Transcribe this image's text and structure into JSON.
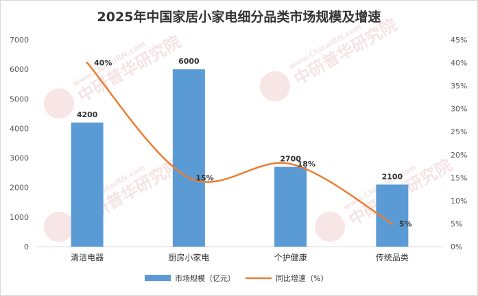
{
  "chart_data": {
    "type": "bar",
    "title": "2025年中国家居小家电细分品类市场规模及增速",
    "categories": [
      "清洁电器",
      "厨房小家电",
      "个护健康",
      "传统品类"
    ],
    "series": [
      {
        "name": "市场规模（亿元）",
        "kind": "bar",
        "axis": "left",
        "color": "#5b9bd5",
        "values": [
          4200,
          6000,
          2700,
          2100
        ]
      },
      {
        "name": "同比增速（%）",
        "kind": "line",
        "axis": "right",
        "color": "#ed7d31",
        "values": [
          40,
          15,
          18,
          5
        ]
      }
    ],
    "data_labels": {
      "bars": [
        "4200",
        "6000",
        "2700",
        "2100"
      ],
      "line": [
        "40%",
        "15%",
        "18%",
        "5%"
      ]
    },
    "y_left": {
      "ylim": [
        0,
        7000
      ],
      "ticks": [
        "0",
        "1000",
        "2000",
        "3000",
        "4000",
        "5000",
        "6000",
        "7000"
      ]
    },
    "y_right": {
      "ylim": [
        0,
        45
      ],
      "ticks": [
        "0%",
        "5%",
        "10%",
        "15%",
        "20%",
        "25%",
        "30%",
        "35%",
        "40%",
        "45%"
      ]
    },
    "legend_position": "bottom",
    "grid": false
  },
  "watermark": {
    "english": "www.ChinaIRN.com",
    "chinese": "中研普华研究院",
    "logo": "CIRN"
  }
}
